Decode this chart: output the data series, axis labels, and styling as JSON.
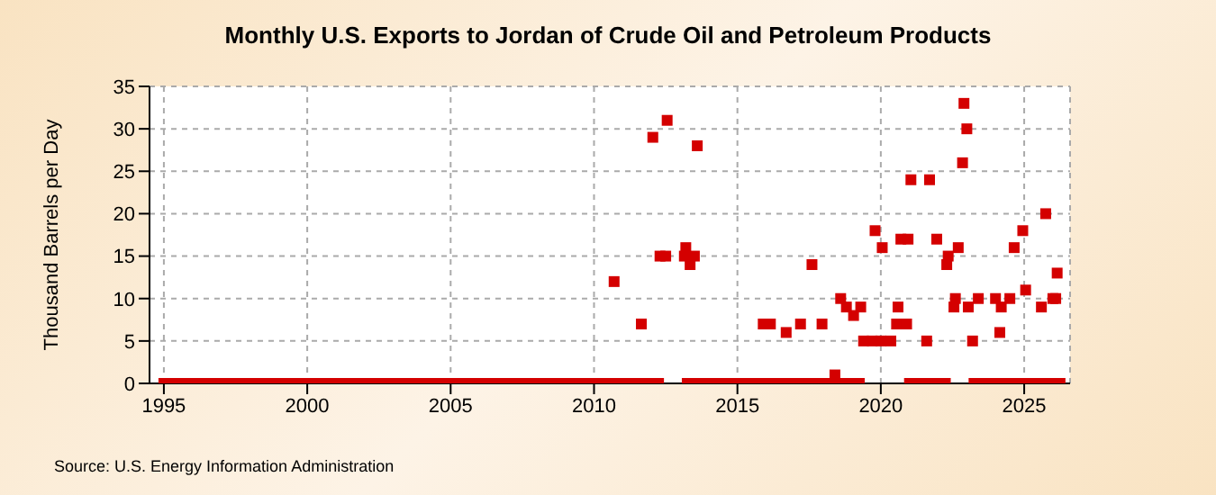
{
  "chart_data": {
    "type": "scatter",
    "title": "Monthly U.S. Exports to Jordan of Crude Oil and Petroleum Products",
    "ylabel": "Thousand Barrels per Day",
    "annotations": [
      "Source: U.S. Energy Information Administration"
    ],
    "series": [
      {
        "color": "#d40000",
        "x": [
          2010.7,
          2011.65,
          2012.05,
          2012.3,
          2012.5,
          2012.55,
          2013.15,
          2013.2,
          2013.35,
          2013.5,
          2013.6,
          2015.9,
          2016.15,
          2016.7,
          2017.2,
          2017.6,
          2017.95,
          2018.4,
          2018.6,
          2018.8,
          2019.05,
          2019.3,
          2019.4,
          2019.7,
          2019.8,
          2020.0,
          2020.05,
          2020.35,
          2020.55,
          2020.6,
          2020.7,
          2020.9,
          2020.95,
          2021.05,
          2021.6,
          2021.7,
          2021.95,
          2022.3,
          2022.35,
          2022.55,
          2022.6,
          2022.7,
          2022.85,
          2022.9,
          2023.0,
          2023.05,
          2023.2,
          2023.4,
          2024.0,
          2024.15,
          2024.2,
          2024.5,
          2024.65,
          2024.95,
          2025.05,
          2025.6,
          2025.75,
          2026.0,
          2026.1,
          2026.15,
          1995,
          1995.25,
          1995.5,
          1995.75,
          1996,
          1996.25,
          1996.5,
          1996.75,
          1997,
          1997.25,
          1997.5,
          1997.75,
          1998,
          1998.25,
          1998.5,
          1998.75,
          1999,
          1999.25,
          1999.5,
          1999.75,
          2000,
          2000.25,
          2000.5,
          2000.75,
          2001,
          2001.25,
          2001.5,
          2001.75,
          2002,
          2002.25,
          2002.5,
          2002.75,
          2003,
          2003.25,
          2003.5,
          2003.75,
          2004,
          2004.25,
          2004.5,
          2004.75,
          2005,
          2005.25,
          2005.5,
          2005.75,
          2006,
          2006.25,
          2006.5,
          2006.75,
          2007,
          2007.25,
          2007.5,
          2007.75,
          2008,
          2008.25,
          2008.5,
          2008.75,
          2009,
          2009.25,
          2009.5,
          2009.75,
          2010,
          2010.25,
          2010.5,
          2010.75,
          2011,
          2011.25,
          2011.5,
          2011.75,
          2012,
          2012.25,
          2013.25,
          2013.5,
          2013.75,
          2014,
          2014.25,
          2014.5,
          2014.75,
          2015,
          2015.25,
          2015.5,
          2015.75,
          2016,
          2016.25,
          2016.5,
          2016.75,
          2017,
          2017.25,
          2017.5,
          2017.75,
          2018,
          2018.25,
          2018.5,
          2018.75,
          2019,
          2019.25,
          2021,
          2021.25,
          2021.5,
          2021.75,
          2022,
          2022.25,
          2023.25,
          2023.5,
          2023.75,
          2024,
          2024.25,
          2024.5,
          2024.75,
          2025,
          2025.25,
          2025.5,
          2025.75,
          2026,
          2026.25
        ],
        "values": [
          12,
          7,
          29,
          15,
          15,
          31,
          15,
          16,
          14,
          15,
          28,
          7,
          7,
          6,
          7,
          14,
          7,
          1,
          10,
          9,
          8,
          9,
          5,
          5,
          18,
          5,
          16,
          5,
          7,
          9,
          17,
          7,
          17,
          24,
          5,
          24,
          17,
          14,
          15,
          9,
          10,
          16,
          26,
          33,
          30,
          9,
          5,
          10,
          10,
          6,
          9,
          10,
          16,
          18,
          11,
          9,
          20,
          10,
          10,
          13,
          0,
          0,
          0,
          0,
          0,
          0,
          0,
          0,
          0,
          0,
          0,
          0,
          0,
          0,
          0,
          0,
          0,
          0,
          0,
          0,
          0,
          0,
          0,
          0,
          0,
          0,
          0,
          0,
          0,
          0,
          0,
          0,
          0,
          0,
          0,
          0,
          0,
          0,
          0,
          0,
          0,
          0,
          0,
          0,
          0,
          0,
          0,
          0,
          0,
          0,
          0,
          0,
          0,
          0,
          0,
          0,
          0,
          0,
          0,
          0,
          0,
          0,
          0,
          0,
          0,
          0,
          0,
          0,
          0,
          0,
          0,
          0,
          0,
          0,
          0,
          0,
          0,
          0,
          0,
          0,
          0,
          0,
          0,
          0,
          0,
          0,
          0,
          0,
          0,
          0,
          0,
          0,
          0,
          0,
          0,
          0,
          0,
          0,
          0,
          0,
          0,
          0,
          0,
          0,
          0,
          0,
          0,
          0,
          0,
          0,
          0,
          0,
          0,
          0
        ]
      }
    ],
    "xlim": [
      1994.5,
      2026.6
    ],
    "xticks": [
      1995,
      2000,
      2005,
      2010,
      2015,
      2020,
      2025
    ],
    "ylim": [
      0,
      35
    ],
    "yticks": [
      0,
      5,
      10,
      15,
      20,
      25,
      30,
      35
    ],
    "grid": true,
    "marker": "square",
    "legend": false
  }
}
